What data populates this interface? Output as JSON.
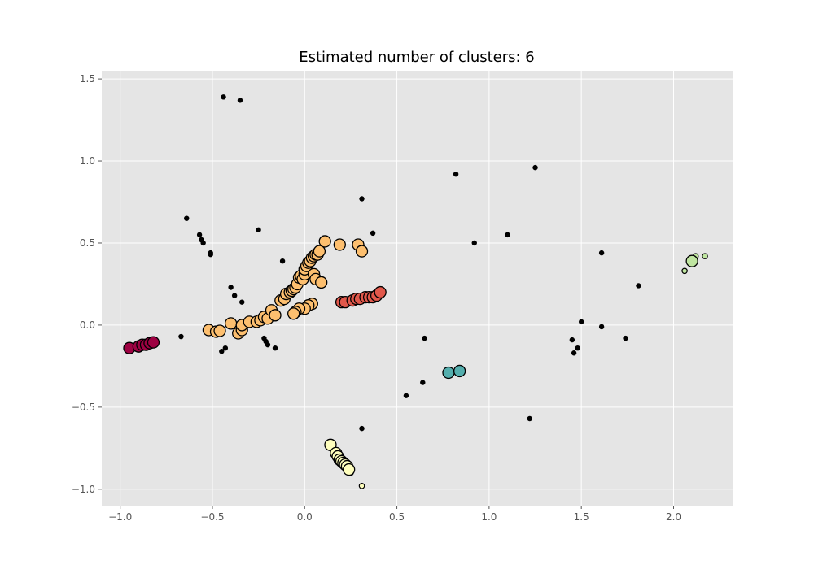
{
  "chart_data": {
    "type": "scatter",
    "title": "Estimated number of clusters: 6",
    "xlabel": "",
    "ylabel": "",
    "xlim": [
      -1.1,
      2.32
    ],
    "ylim": [
      -1.1,
      1.55
    ],
    "xticks": [
      -1.0,
      -0.5,
      0.0,
      0.5,
      1.0,
      1.5,
      2.0
    ],
    "xtick_labels": [
      "−1.0",
      "−0.5",
      "0.0",
      "0.5",
      "1.0",
      "1.5",
      "2.0"
    ],
    "yticks": [
      -1.0,
      -0.5,
      0.0,
      0.5,
      1.0,
      1.5
    ],
    "ytick_labels": [
      "−1.0",
      "−0.5",
      "0.0",
      "0.5",
      "1.0",
      "1.5"
    ],
    "grid": true,
    "background_color": "#e5e5e5",
    "series": [
      {
        "color": "#9e0142",
        "core_points": [
          [
            -0.95,
            -0.14
          ],
          [
            -0.9,
            -0.13
          ],
          [
            -0.88,
            -0.12
          ],
          [
            -0.86,
            -0.12
          ],
          [
            -0.84,
            -0.11
          ],
          [
            -0.82,
            -0.105
          ]
        ],
        "border_points": []
      },
      {
        "color": "#e1584b",
        "core_points": [
          [
            0.2,
            0.14
          ],
          [
            0.22,
            0.14
          ],
          [
            0.26,
            0.15
          ],
          [
            0.28,
            0.16
          ],
          [
            0.3,
            0.16
          ],
          [
            0.33,
            0.17
          ],
          [
            0.35,
            0.17
          ],
          [
            0.37,
            0.17
          ],
          [
            0.39,
            0.18
          ],
          [
            0.41,
            0.2
          ]
        ],
        "border_points": []
      },
      {
        "color": "#fdbf6f",
        "core_points": [
          [
            -0.52,
            -0.03
          ],
          [
            -0.48,
            -0.04
          ],
          [
            -0.46,
            -0.035
          ],
          [
            -0.4,
            0.01
          ],
          [
            -0.36,
            -0.05
          ],
          [
            -0.34,
            -0.03
          ],
          [
            -0.34,
            0.0
          ],
          [
            -0.3,
            0.02
          ],
          [
            -0.26,
            0.02
          ],
          [
            -0.24,
            0.03
          ],
          [
            -0.22,
            0.05
          ],
          [
            -0.2,
            0.04
          ],
          [
            -0.18,
            0.09
          ],
          [
            -0.16,
            0.06
          ],
          [
            -0.13,
            0.15
          ],
          [
            -0.11,
            0.16
          ],
          [
            -0.1,
            0.19
          ],
          [
            -0.08,
            0.2
          ],
          [
            -0.07,
            0.21
          ],
          [
            -0.06,
            0.22
          ],
          [
            -0.05,
            0.23
          ],
          [
            -0.04,
            0.25
          ],
          [
            -0.03,
            0.29
          ],
          [
            -0.02,
            0.3
          ],
          [
            -0.01,
            0.28
          ],
          [
            0.0,
            0.31
          ],
          [
            0.0,
            0.34
          ],
          [
            0.01,
            0.36
          ],
          [
            0.02,
            0.38
          ],
          [
            0.03,
            0.39
          ],
          [
            0.04,
            0.41
          ],
          [
            0.05,
            0.42
          ],
          [
            0.06,
            0.43
          ],
          [
            0.07,
            0.43
          ],
          [
            0.08,
            0.45
          ],
          [
            0.11,
            0.51
          ],
          [
            0.19,
            0.49
          ],
          [
            0.29,
            0.49
          ],
          [
            0.31,
            0.45
          ],
          [
            0.05,
            0.31
          ],
          [
            0.06,
            0.28
          ],
          [
            0.09,
            0.26
          ],
          [
            0.04,
            0.13
          ],
          [
            0.02,
            0.12
          ],
          [
            0.0,
            0.1
          ],
          [
            -0.03,
            0.1
          ],
          [
            -0.05,
            0.08
          ],
          [
            -0.06,
            0.07
          ]
        ],
        "border_points": []
      },
      {
        "color": "#fefebd",
        "core_points": [
          [
            0.14,
            -0.73
          ],
          [
            0.17,
            -0.78
          ],
          [
            0.18,
            -0.8
          ],
          [
            0.19,
            -0.82
          ],
          [
            0.2,
            -0.83
          ],
          [
            0.21,
            -0.84
          ],
          [
            0.22,
            -0.85
          ],
          [
            0.23,
            -0.86
          ],
          [
            0.24,
            -0.88
          ]
        ],
        "border_points": [
          [
            0.25,
            -0.89
          ],
          [
            0.25,
            -0.9
          ],
          [
            0.31,
            -0.98
          ]
        ]
      },
      {
        "color": "#bfe5a0",
        "core_points": [
          [
            2.1,
            0.39
          ]
        ],
        "border_points": [
          [
            2.06,
            0.33
          ],
          [
            2.12,
            0.42
          ],
          [
            2.17,
            0.42
          ]
        ]
      },
      {
        "color": "#54aead",
        "core_points": [
          [
            0.78,
            -0.29
          ],
          [
            0.84,
            -0.28
          ]
        ],
        "border_points": []
      }
    ],
    "noise": {
      "color": "#000000",
      "points": [
        [
          -0.44,
          1.39
        ],
        [
          -0.35,
          1.37
        ],
        [
          -0.64,
          0.65
        ],
        [
          -0.57,
          0.55
        ],
        [
          -0.56,
          0.52
        ],
        [
          -0.55,
          0.5
        ],
        [
          -0.51,
          0.44
        ],
        [
          -0.51,
          0.43
        ],
        [
          -0.25,
          0.58
        ],
        [
          -0.12,
          0.39
        ],
        [
          -0.4,
          0.23
        ],
        [
          -0.38,
          0.18
        ],
        [
          -0.34,
          0.14
        ],
        [
          -0.67,
          -0.07
        ],
        [
          -0.45,
          -0.16
        ],
        [
          -0.43,
          -0.14
        ],
        [
          -0.22,
          -0.08
        ],
        [
          -0.21,
          -0.1
        ],
        [
          -0.2,
          -0.12
        ],
        [
          -0.16,
          -0.14
        ],
        [
          0.31,
          0.77
        ],
        [
          0.37,
          0.56
        ],
        [
          0.82,
          0.92
        ],
        [
          1.25,
          0.96
        ],
        [
          0.92,
          0.5
        ],
        [
          1.1,
          0.55
        ],
        [
          1.61,
          0.44
        ],
        [
          1.81,
          0.24
        ],
        [
          1.5,
          0.02
        ],
        [
          1.61,
          -0.01
        ],
        [
          1.45,
          -0.09
        ],
        [
          1.74,
          -0.08
        ],
        [
          1.48,
          -0.14
        ],
        [
          1.46,
          -0.17
        ],
        [
          0.65,
          -0.08
        ],
        [
          0.64,
          -0.35
        ],
        [
          0.55,
          -0.43
        ],
        [
          1.22,
          -0.57
        ],
        [
          0.31,
          -0.63
        ]
      ]
    }
  }
}
